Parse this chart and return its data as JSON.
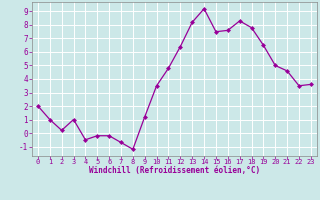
{
  "x": [
    0,
    1,
    2,
    3,
    4,
    5,
    6,
    7,
    8,
    9,
    10,
    11,
    12,
    13,
    14,
    15,
    16,
    17,
    18,
    19,
    20,
    21,
    22,
    23
  ],
  "y": [
    2.0,
    1.0,
    0.2,
    1.0,
    -0.5,
    -0.2,
    -0.2,
    -0.7,
    -1.2,
    1.2,
    3.5,
    4.8,
    6.4,
    8.2,
    9.2,
    7.5,
    7.6,
    8.3,
    7.8,
    6.5,
    5.0,
    4.6,
    3.5,
    3.6
  ],
  "line_color": "#990099",
  "marker": "D",
  "marker_size": 2.0,
  "bg_color": "#cce8e8",
  "grid_color": "#b0d8d8",
  "xlabel": "Windchill (Refroidissement éolien,°C)",
  "xlim": [
    -0.5,
    23.5
  ],
  "ylim": [
    -1.7,
    9.7
  ],
  "yticks": [
    -1,
    0,
    1,
    2,
    3,
    4,
    5,
    6,
    7,
    8,
    9
  ],
  "xticks": [
    0,
    1,
    2,
    3,
    4,
    5,
    6,
    7,
    8,
    9,
    10,
    11,
    12,
    13,
    14,
    15,
    16,
    17,
    18,
    19,
    20,
    21,
    22,
    23
  ],
  "tick_color": "#990099",
  "label_color": "#990099",
  "spine_color": "#888888",
  "figsize": [
    3.2,
    2.0
  ],
  "dpi": 100
}
